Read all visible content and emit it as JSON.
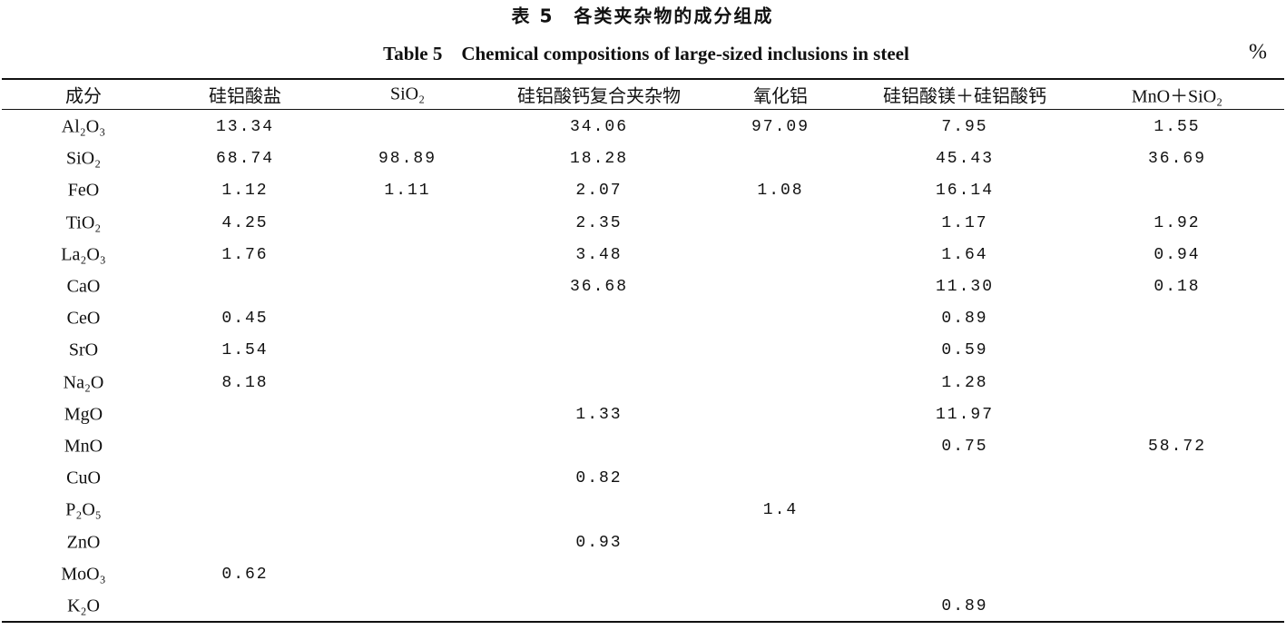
{
  "header": {
    "title": "表 5　各类夹杂物的成分组成",
    "subtitle": "Table 5　Chemical compositions of large-sized inclusions in steel",
    "unit": "%"
  },
  "table": {
    "columns": [
      "成分",
      "硅铝酸盐",
      "SiO₂",
      "硅铝酸钙复合夹杂物",
      "氧化铝",
      "硅铝酸镁＋硅铝酸钙",
      "MnO＋SiO₂"
    ],
    "rows": [
      [
        "Al₂O₃",
        "13.34",
        null,
        "34.06",
        "97.09",
        "7.95",
        "1.55"
      ],
      [
        "SiO₂",
        "68.74",
        "98.89",
        "18.28",
        null,
        "45.43",
        "36.69"
      ],
      [
        "FeO",
        "1.12",
        "1.11",
        "2.07",
        "1.08",
        "16.14",
        null
      ],
      [
        "TiO₂",
        "4.25",
        null,
        "2.35",
        null,
        "1.17",
        "1.92"
      ],
      [
        "La₂O₃",
        "1.76",
        null,
        "3.48",
        null,
        "1.64",
        "0.94"
      ],
      [
        "CaO",
        null,
        null,
        "36.68",
        null,
        "11.30",
        "0.18"
      ],
      [
        "CeO",
        "0.45",
        null,
        null,
        null,
        "0.89",
        null
      ],
      [
        "SrO",
        "1.54",
        null,
        null,
        null,
        "0.59",
        null
      ],
      [
        "Na₂O",
        "8.18",
        null,
        null,
        null,
        "1.28",
        null
      ],
      [
        "MgO",
        null,
        null,
        "1.33",
        null,
        "11.97",
        null
      ],
      [
        "MnO",
        null,
        null,
        null,
        null,
        "0.75",
        "58.72"
      ],
      [
        "CuO",
        null,
        null,
        "0.82",
        null,
        null,
        null
      ],
      [
        "P₂O₅",
        null,
        null,
        null,
        "1.4",
        null,
        null
      ],
      [
        "ZnO",
        null,
        null,
        "0.93",
        null,
        null,
        null
      ],
      [
        "MoO₃",
        "0.62",
        null,
        null,
        null,
        null,
        null
      ],
      [
        "K₂O",
        null,
        null,
        null,
        null,
        "0.89",
        null
      ]
    ]
  }
}
